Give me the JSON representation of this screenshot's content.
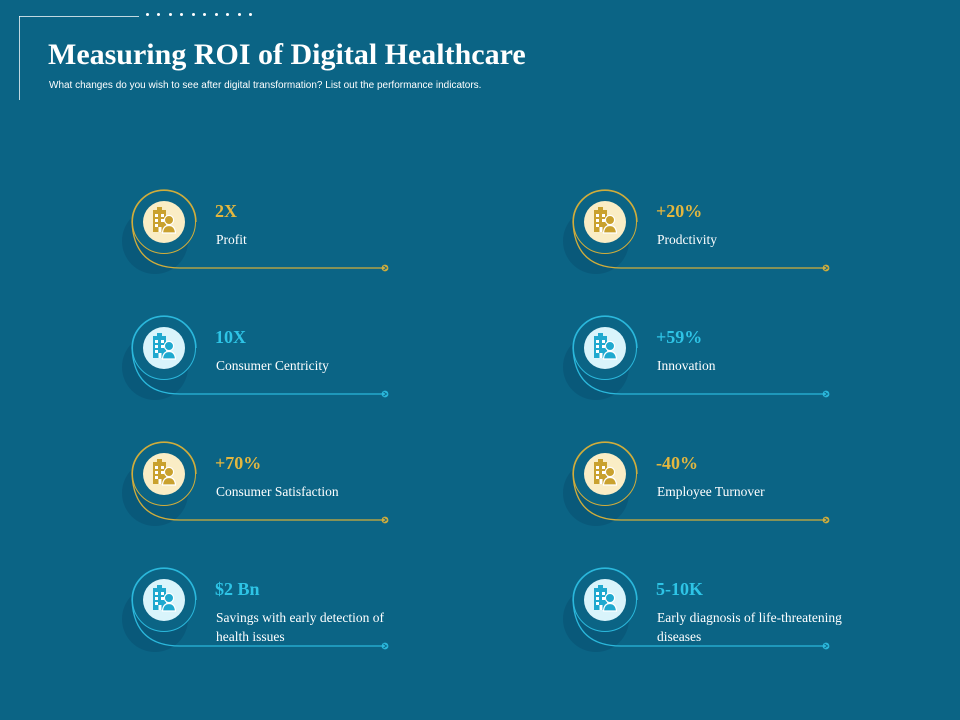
{
  "header": {
    "title": "Measuring ROI of  Digital Healthcare",
    "subtitle": "What changes do you wish to see after digital transformation?  List out the performance indicators."
  },
  "colors": {
    "background": "#0b6485",
    "gold": "#e4b73f",
    "blue": "#2ec4e6"
  },
  "metrics": [
    {
      "value": "2X",
      "label": "Profit",
      "theme": "gold",
      "icon": "hospital-doctor-icon"
    },
    {
      "value": "+20%",
      "label": "Prodctivity",
      "theme": "gold",
      "icon": "hospital-doctor-icon"
    },
    {
      "value": "10X",
      "label": "Consumer Centricity",
      "theme": "blue",
      "icon": "hospital-doctor-icon"
    },
    {
      "value": "+59%",
      "label": "Innovation",
      "theme": "blue",
      "icon": "hospital-doctor-icon"
    },
    {
      "value": "+70%",
      "label": "Consumer Satisfaction",
      "theme": "gold",
      "icon": "hospital-doctor-icon"
    },
    {
      "value": "-40%",
      "label": "Employee Turnover",
      "theme": "gold",
      "icon": "hospital-doctor-icon"
    },
    {
      "value": "$2 Bn",
      "label": "Savings with early detection of  health issues",
      "theme": "blue",
      "icon": "hospital-doctor-icon"
    },
    {
      "value": "5-10K",
      "label": "Early diagnosis of  life-threatening diseases",
      "theme": "blue",
      "icon": "hospital-doctor-icon"
    }
  ]
}
